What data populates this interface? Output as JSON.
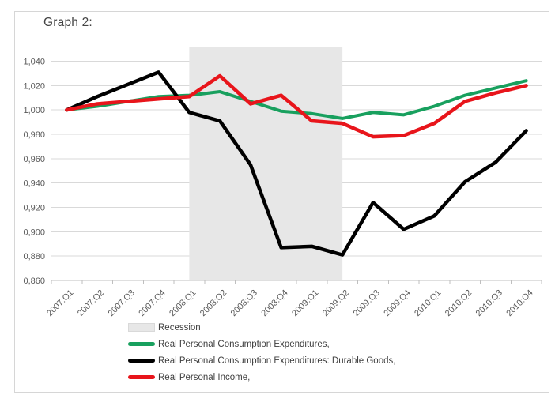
{
  "chart_data": {
    "type": "line",
    "title": "Graph 2:",
    "categories": [
      "2007:Q1",
      "2007:Q2",
      "2007:Q3",
      "2007:Q4",
      "2008:Q1",
      "2008:Q2",
      "2008:Q3",
      "2008:Q4",
      "2009:Q1",
      "2009:Q2",
      "2009:Q3",
      "2009:Q4",
      "2010:Q1",
      "2010:Q2",
      "2010:Q3",
      "2010:Q4"
    ],
    "series": [
      {
        "name": "Real Personal Consumption Expenditures,",
        "color": "#18a05e",
        "width": 4,
        "values": [
          1.0,
          1.003,
          1.007,
          1.011,
          1.012,
          1.015,
          1.007,
          0.999,
          0.997,
          0.993,
          0.998,
          0.996,
          1.003,
          1.012,
          1.018,
          1.024
        ]
      },
      {
        "name": "Real Personal Consumption Expenditures: Durable Goods,",
        "color": "#000000",
        "width": 4.5,
        "values": [
          1.0,
          1.011,
          1.021,
          1.031,
          0.998,
          0.991,
          0.955,
          0.887,
          0.888,
          0.881,
          0.924,
          0.902,
          0.913,
          0.941,
          0.957,
          0.983
        ]
      },
      {
        "name": "Real Personal Income,",
        "color": "#e8151b",
        "width": 4.5,
        "values": [
          1.0,
          1.005,
          1.007,
          1.009,
          1.011,
          1.028,
          1.005,
          1.012,
          0.991,
          0.989,
          0.978,
          0.979,
          0.989,
          1.007,
          1.014,
          1.02
        ]
      }
    ],
    "recession_band": {
      "label": "Recession",
      "from": "2008:Q1",
      "to": "2009:Q2",
      "color": "#e7e7e7"
    },
    "y_axis": {
      "min": 0.86,
      "max": 1.05,
      "major_unit": 0.02,
      "tick_values": [
        1.04,
        1.02,
        1.0,
        0.98,
        0.96,
        0.94,
        0.92,
        0.9,
        0.88,
        0.86
      ],
      "tick_labels": [
        "1,040",
        "1,020",
        "1,000",
        "0,980",
        "0,960",
        "0,940",
        "0,920",
        "0,900",
        "0,880",
        "0,860"
      ]
    },
    "x_axis": {
      "label_rotation_deg": -45
    },
    "grid": "horizontal-major",
    "legend_position": "bottom-left"
  },
  "colors": {
    "gridline": "#d9d9d9",
    "axis": "#bfbfbf",
    "tick_text": "#595959",
    "legend_text": "#404040",
    "frame_border": "#d6d6d6",
    "background": "#ffffff"
  }
}
